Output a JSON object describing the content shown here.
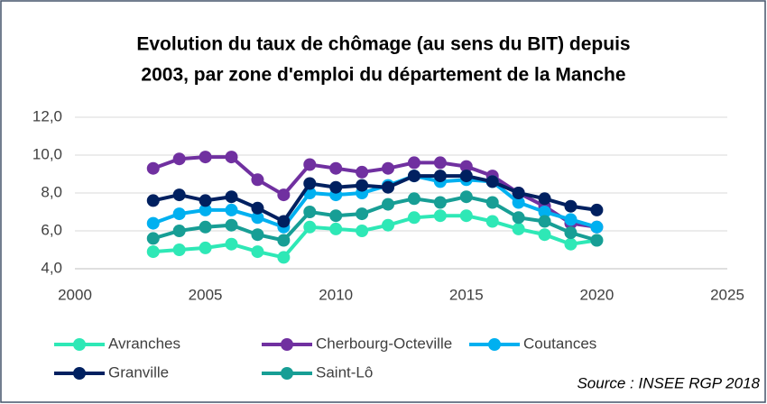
{
  "chart_data": {
    "type": "line",
    "title": [
      "Evolution du taux de chômage (au sens du BIT) depuis",
      "2003, par zone d'emploi du département de la Manche"
    ],
    "x": [
      2003,
      2004,
      2005,
      2006,
      2007,
      2008,
      2009,
      2010,
      2011,
      2012,
      2013,
      2014,
      2015,
      2016,
      2017,
      2018,
      2019,
      2020
    ],
    "series": [
      {
        "name": "Avranches",
        "color": "#2ee8b6",
        "values": [
          4.9,
          5.0,
          5.1,
          5.3,
          4.9,
          4.6,
          6.2,
          6.1,
          6.0,
          6.3,
          6.7,
          6.8,
          6.8,
          6.5,
          6.1,
          5.8,
          5.3,
          5.5
        ]
      },
      {
        "name": "Cherbourg-Octeville",
        "color": "#7030a0",
        "values": [
          9.3,
          9.8,
          9.9,
          9.9,
          8.7,
          7.9,
          9.5,
          9.3,
          9.1,
          9.3,
          9.6,
          9.6,
          9.4,
          8.9,
          8.0,
          7.3,
          6.4,
          6.2
        ]
      },
      {
        "name": "Coutances",
        "color": "#00b0f0",
        "values": [
          6.4,
          6.9,
          7.1,
          7.1,
          6.7,
          6.2,
          8.0,
          7.9,
          8.0,
          8.4,
          8.9,
          8.6,
          8.7,
          8.6,
          7.5,
          7.0,
          6.6,
          6.2
        ]
      },
      {
        "name": "Granville",
        "color": "#002060",
        "values": [
          7.6,
          7.9,
          7.6,
          7.8,
          7.2,
          6.5,
          8.5,
          8.3,
          8.4,
          8.3,
          8.9,
          8.9,
          8.9,
          8.6,
          8.0,
          7.7,
          7.3,
          7.1
        ]
      },
      {
        "name": "Saint-Lô",
        "color": "#179e95",
        "values": [
          5.6,
          6.0,
          6.2,
          6.3,
          5.8,
          5.5,
          7.0,
          6.8,
          6.9,
          7.4,
          7.7,
          7.5,
          7.8,
          7.5,
          6.7,
          6.5,
          5.9,
          5.5
        ]
      }
    ],
    "xlim": [
      2000,
      2025
    ],
    "xticks": [
      2000,
      2005,
      2010,
      2015,
      2020,
      2025
    ],
    "ylim": [
      4,
      12
    ],
    "yticks": [
      {
        "value": 4,
        "label": "4,0"
      },
      {
        "value": 6,
        "label": "6,0"
      },
      {
        "value": 8,
        "label": "8,0"
      },
      {
        "value": 10,
        "label": "10,0"
      },
      {
        "value": 12,
        "label": "12,0"
      }
    ],
    "grid": true,
    "annotation": "Source : INSEE RGP 2018"
  }
}
